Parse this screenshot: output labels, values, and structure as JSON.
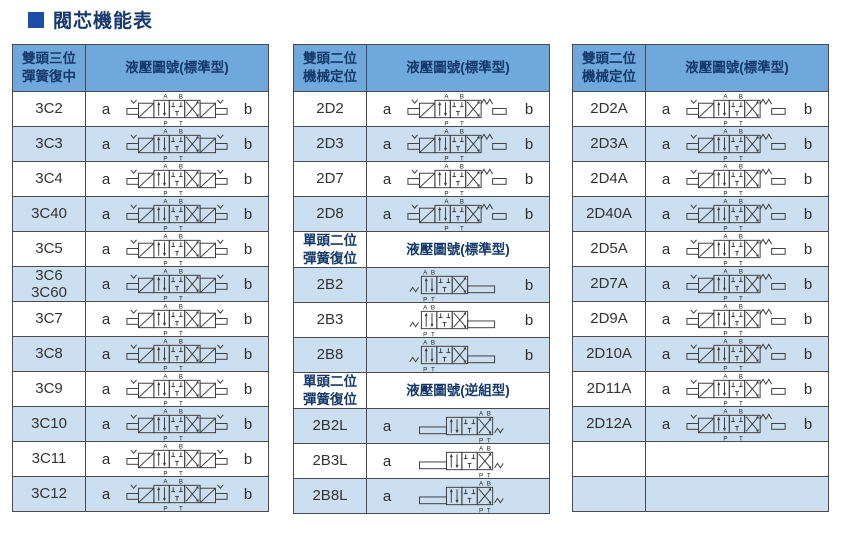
{
  "title": "閥芯機能表",
  "colors": {
    "header_bg": "#6FA9DB",
    "shaded_row_bg": "#CBDFF0",
    "header_text": "#15396A",
    "body_text": "#333333",
    "border": "#4A4A4A",
    "title_square": "#1B4FA5",
    "title_text": "#17396E",
    "symbol_stroke": "#3C3C3C",
    "background": "#FFFFFF"
  },
  "tables": [
    {
      "name": "double-head-three-position-spring-center",
      "sections": [
        {
          "header": {
            "left": "雙頭三位\n彈簧復中",
            "right": "液壓圖號(標準型)",
            "variant": "blue"
          }
        },
        {
          "rows": [
            {
              "code": "3C2",
              "a": "a",
              "b": "b",
              "sym": "3c",
              "shaded": false
            },
            {
              "code": "3C3",
              "a": "a",
              "b": "b",
              "sym": "3c",
              "shaded": true
            },
            {
              "code": "3C4",
              "a": "a",
              "b": "b",
              "sym": "3c",
              "shaded": false
            },
            {
              "code": "3C40",
              "a": "a",
              "b": "b",
              "sym": "3c",
              "shaded": true
            },
            {
              "code": "3C5",
              "a": "a",
              "b": "b",
              "sym": "3c",
              "shaded": false
            },
            {
              "code": "3C6\n3C60",
              "a": "a",
              "b": "b",
              "sym": "3c",
              "shaded": true
            },
            {
              "code": "3C7",
              "a": "a",
              "b": "b",
              "sym": "3c",
              "shaded": false
            },
            {
              "code": "3C8",
              "a": "a",
              "b": "b",
              "sym": "3c",
              "shaded": true
            },
            {
              "code": "3C9",
              "a": "a",
              "b": "b",
              "sym": "3c",
              "shaded": false
            },
            {
              "code": "3C10",
              "a": "a",
              "b": "b",
              "sym": "3c",
              "shaded": true
            },
            {
              "code": "3C11",
              "a": "a",
              "b": "b",
              "sym": "3c",
              "shaded": false
            },
            {
              "code": "3C12",
              "a": "a",
              "b": "b",
              "sym": "3c",
              "shaded": true
            }
          ]
        }
      ]
    },
    {
      "name": "double-head-two-position-mechanical-detent",
      "sections": [
        {
          "header": {
            "left": "雙頭二位\n機械定位",
            "right": "液壓圖號(標準型)",
            "variant": "blue"
          }
        },
        {
          "rows": [
            {
              "code": "2D2",
              "a": "a",
              "b": "b",
              "sym": "2d",
              "shaded": false
            },
            {
              "code": "2D3",
              "a": "a",
              "b": "b",
              "sym": "2d",
              "shaded": true
            },
            {
              "code": "2D7",
              "a": "a",
              "b": "b",
              "sym": "2d",
              "shaded": false
            },
            {
              "code": "2D8",
              "a": "a",
              "b": "b",
              "sym": "2d",
              "shaded": true
            }
          ]
        },
        {
          "header": {
            "left": "單頭二位\n彈簧復位",
            "right": "液壓圖號(標準型)",
            "variant": "white"
          }
        },
        {
          "rows": [
            {
              "code": "2B2",
              "a": "",
              "b": "b",
              "sym": "2b",
              "shaded": true
            },
            {
              "code": "2B3",
              "a": "",
              "b": "b",
              "sym": "2b",
              "shaded": false
            },
            {
              "code": "2B8",
              "a": "",
              "b": "b",
              "sym": "2b",
              "shaded": true
            }
          ]
        },
        {
          "header": {
            "left": "單頭二位\n彈簧復位",
            "right": "液壓圖號(逆組型)",
            "variant": "white"
          }
        },
        {
          "rows": [
            {
              "code": "2B2L",
              "a": "a",
              "b": "",
              "sym": "2bl",
              "shaded": true
            },
            {
              "code": "2B3L",
              "a": "a",
              "b": "",
              "sym": "2bl",
              "shaded": false
            },
            {
              "code": "2B8L",
              "a": "a",
              "b": "",
              "sym": "2bl",
              "shaded": true
            }
          ]
        }
      ]
    },
    {
      "name": "double-head-two-position-mechanical-detent-a-type",
      "sections": [
        {
          "header": {
            "left": "雙頭二位\n機械定位",
            "right": "液壓圖號(標準型)",
            "variant": "blue"
          }
        },
        {
          "rows": [
            {
              "code": "2D2A",
              "a": "a",
              "b": "b",
              "sym": "2d",
              "shaded": false
            },
            {
              "code": "2D3A",
              "a": "a",
              "b": "b",
              "sym": "2d",
              "shaded": true
            },
            {
              "code": "2D4A",
              "a": "a",
              "b": "b",
              "sym": "2d",
              "shaded": false
            },
            {
              "code": "2D40A",
              "a": "a",
              "b": "b",
              "sym": "2d",
              "shaded": true
            },
            {
              "code": "2D5A",
              "a": "a",
              "b": "b",
              "sym": "2d",
              "shaded": false
            },
            {
              "code": "2D7A",
              "a": "a",
              "b": "b",
              "sym": "2d",
              "shaded": true
            },
            {
              "code": "2D9A",
              "a": "a",
              "b": "b",
              "sym": "2d",
              "shaded": false
            },
            {
              "code": "2D10A",
              "a": "a",
              "b": "b",
              "sym": "2d",
              "shaded": true
            },
            {
              "code": "2D11A",
              "a": "a",
              "b": "b",
              "sym": "2d",
              "shaded": false
            },
            {
              "code": "2D12A",
              "a": "a",
              "b": "b",
              "sym": "2d",
              "shaded": true
            },
            {
              "code": "",
              "a": "",
              "b": "",
              "sym": "none",
              "shaded": false
            },
            {
              "code": "",
              "a": "",
              "b": "",
              "sym": "none",
              "shaded": true
            }
          ]
        }
      ]
    }
  ]
}
